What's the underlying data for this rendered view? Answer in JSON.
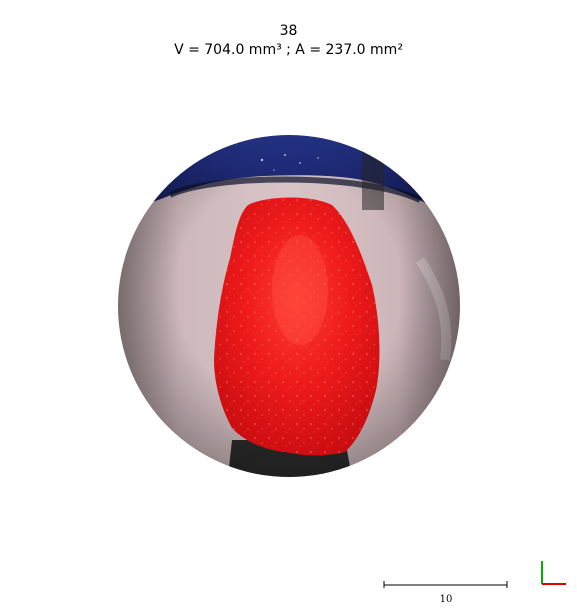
{
  "header": {
    "frame_number": "38",
    "measurement": "V = 704.0 mm³ ; A = 237.0 mm²"
  },
  "viewport": {
    "scene_icon": "endoscopic-tissue-view",
    "segmentation_color": "#e8121a"
  },
  "scale_bar": {
    "label": "10"
  },
  "axis_triad": {
    "x_color": "#e00000",
    "y_color": "#00b000"
  }
}
